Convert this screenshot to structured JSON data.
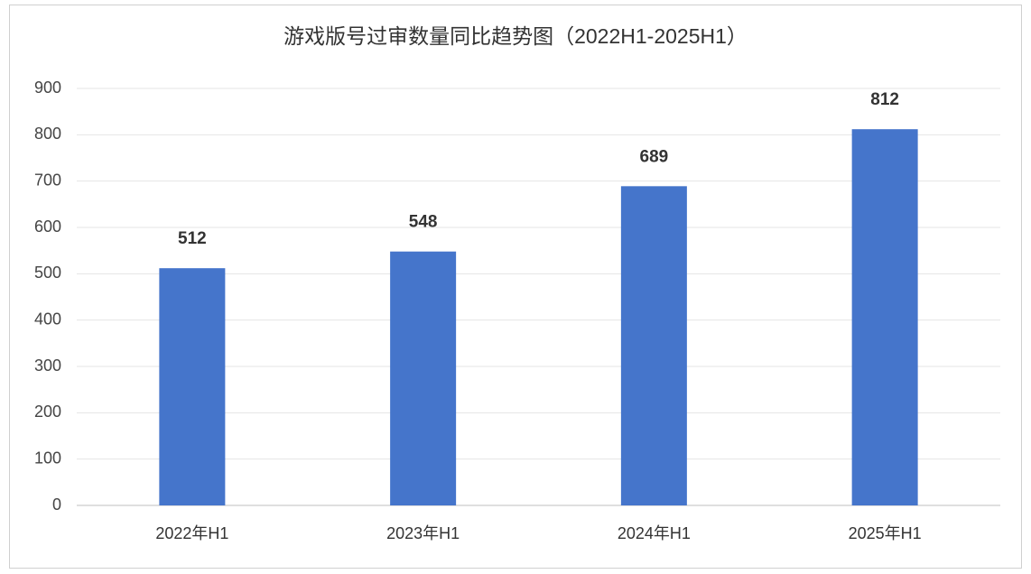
{
  "chart_data": {
    "type": "bar",
    "title": "游戏版号过审数量同比趋势图（2022H1-2025H1）",
    "categories": [
      "2022年H1",
      "2023年H1",
      "2024年H1",
      "2025年H1"
    ],
    "values": [
      512,
      548,
      689,
      812
    ],
    "color": "#4575cb",
    "ylim": [
      0,
      900
    ],
    "yticks": [
      0,
      100,
      200,
      300,
      400,
      500,
      600,
      700,
      800,
      900
    ],
    "grid": true
  }
}
